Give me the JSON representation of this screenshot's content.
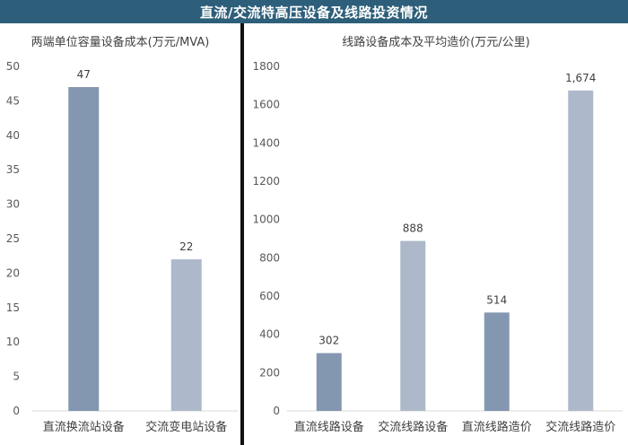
{
  "header": {
    "title": "直流/交流特高压设备及线路投资情况"
  },
  "colors": {
    "header_bg": "#2e5f7a",
    "bar_dark": "#8497b0",
    "bar_light": "#adb9ca",
    "divider": "#111111"
  },
  "chart_data": [
    {
      "type": "bar",
      "title": "两端单位容量设备成本(万元/MVA)",
      "categories": [
        "直流换流站设备",
        "交流变电站设备"
      ],
      "values": [
        47,
        22
      ],
      "value_labels": [
        "47",
        "22"
      ],
      "ylim": [
        0,
        50
      ],
      "yticks": [
        "0",
        "5",
        "10",
        "15",
        "20",
        "25",
        "30",
        "35",
        "40",
        "45",
        "50"
      ],
      "bar_colors": [
        "#8497b0",
        "#adb9ca"
      ],
      "grid": false
    },
    {
      "type": "bar",
      "title": "线路设备成本及平均造价(万元/公里)",
      "categories": [
        "直流线路设备",
        "交流线路设备",
        "直流线路造价",
        "交流线路造价"
      ],
      "values": [
        302,
        888,
        514,
        1674
      ],
      "value_labels": [
        "302",
        "888",
        "514",
        "1,674"
      ],
      "ylim": [
        0,
        1800
      ],
      "yticks": [
        "0",
        "200",
        "400",
        "600",
        "800",
        "1000",
        "1200",
        "1400",
        "1600",
        "1800"
      ],
      "bar_colors": [
        "#8497b0",
        "#adb9ca",
        "#8497b0",
        "#adb9ca"
      ],
      "grid": false
    }
  ]
}
